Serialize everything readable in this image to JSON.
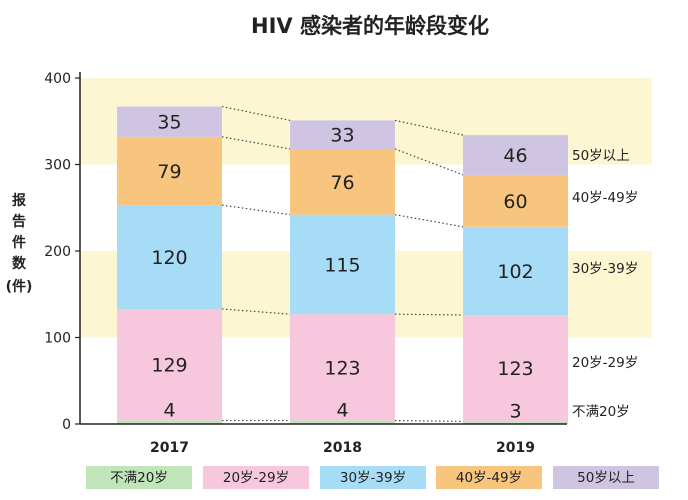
{
  "chart_data": {
    "type": "bar",
    "stacked": true,
    "title": "HIV 感染者的年龄段变化",
    "ylabel": "报告件数（件）",
    "ylim": [
      0,
      400
    ],
    "yticks": [
      "0",
      "100",
      "200",
      "300",
      "400"
    ],
    "categories": [
      "2017",
      "2018",
      "2019"
    ],
    "series": [
      {
        "name": "不满20岁",
        "color": "#bfe5b9",
        "values": [
          4,
          4,
          3
        ]
      },
      {
        "name": "20岁-29岁",
        "color": "#f6c7dd",
        "values": [
          129,
          123,
          123
        ]
      },
      {
        "name": "30岁-39岁",
        "color": "#a6dcf5",
        "values": [
          120,
          115,
          102
        ]
      },
      {
        "name": "40岁-49岁",
        "color": "#f8c57e",
        "values": [
          79,
          76,
          60
        ]
      },
      {
        "name": "50岁以上",
        "color": "#cfc5e3",
        "values": [
          35,
          33,
          46
        ]
      }
    ],
    "band_color": "#fdf6d2",
    "legend_position": "bottom",
    "grid": false
  }
}
